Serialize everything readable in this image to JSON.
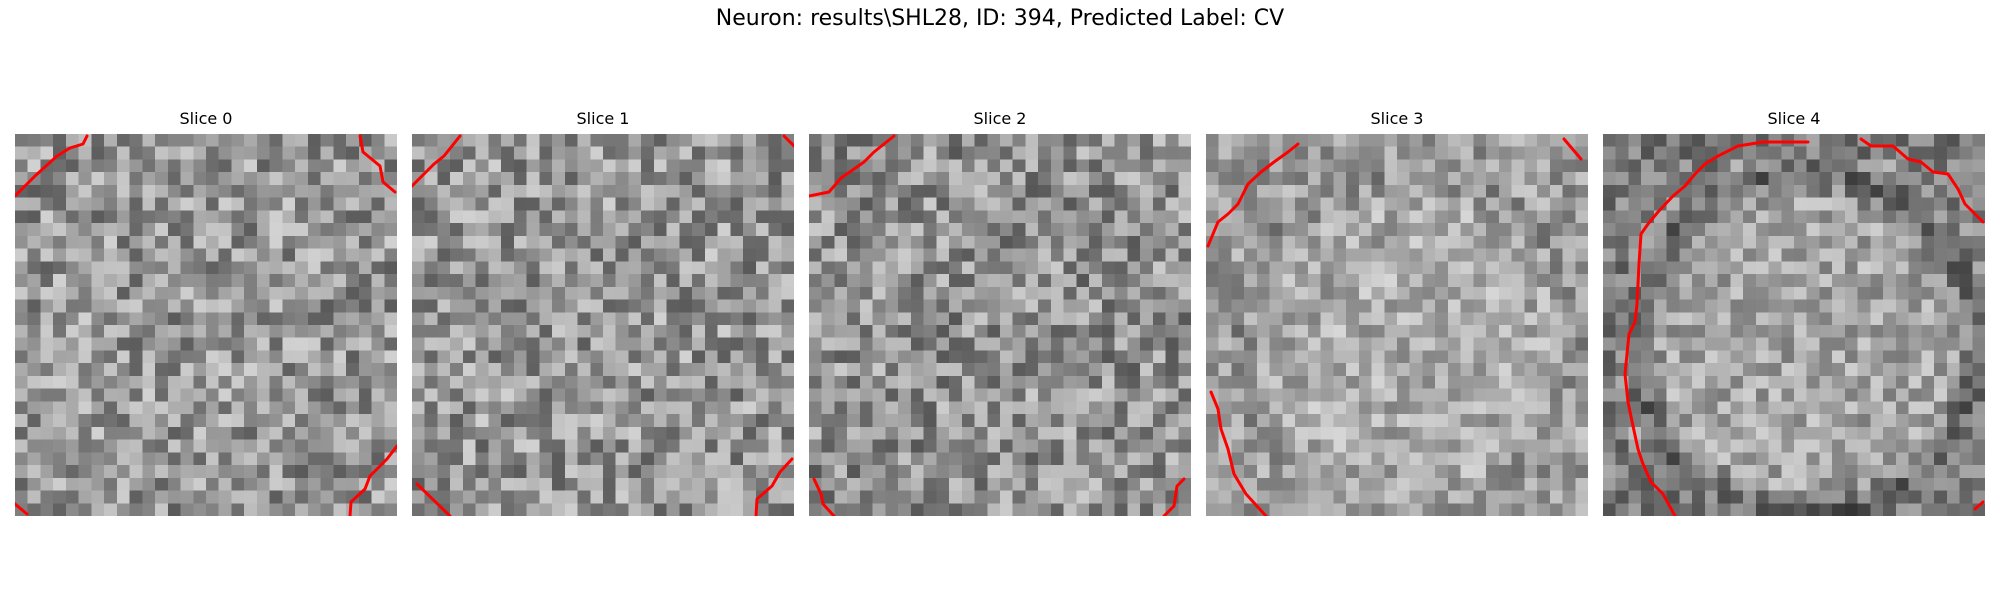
{
  "figure": {
    "title": "Neuron: results\\SHL28, ID: 394, Predicted Label: CV",
    "contour_color": "#ff0000",
    "colormap": "gray"
  },
  "slices": [
    {
      "label": "Slice 0"
    },
    {
      "label": "Slice 1"
    },
    {
      "label": "Slice 2"
    },
    {
      "label": "Slice 3"
    },
    {
      "label": "Slice 4"
    }
  ]
}
